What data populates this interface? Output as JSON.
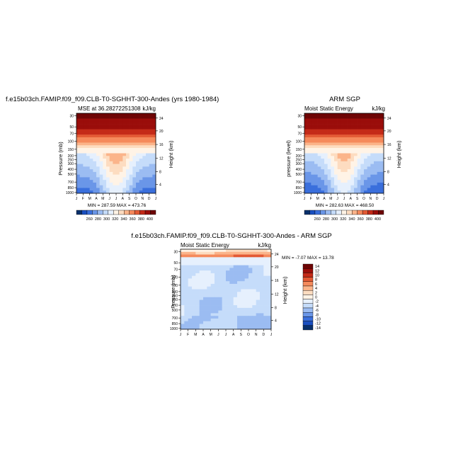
{
  "chart_data": [
    {
      "type": "heatmap",
      "title": "f.e15b03ch.FAMIP.f09_f09.CLB-T0-SGHHT-300-Andes (yrs 1980-1984)",
      "subtitle_left": "MSE at 36.28272251308",
      "subtitle_right": "kJ/kg",
      "ylabel": "Pressure (mb)",
      "ylabel_right": "Height (km)",
      "x_ticks": [
        "J",
        "F",
        "M",
        "A",
        "M",
        "J",
        "J",
        "A",
        "S",
        "O",
        "N",
        "D",
        "J"
      ],
      "y_ticks": [
        "30",
        "50",
        "70",
        "100",
        "150",
        "200",
        "250",
        "300",
        "400",
        "500",
        "700",
        "850",
        "1000"
      ],
      "y_ticks_right": [
        "24",
        "20",
        "16",
        "12",
        "8",
        "4"
      ],
      "stats": "MIN = 287.59 MAX = 473.76",
      "colorbar_labels": [
        "260",
        "280",
        "300",
        "320",
        "340",
        "360",
        "380",
        "400"
      ]
    },
    {
      "type": "heatmap",
      "title": "ARM SGP",
      "subtitle_left": "Moist Static Energy",
      "subtitle_right": "kJ/kg",
      "ylabel": "pressure (level)",
      "ylabel_right": "Height (km)",
      "x_ticks": [
        "J",
        "F",
        "M",
        "A",
        "M",
        "J",
        "J",
        "A",
        "S",
        "O",
        "N",
        "D",
        "J"
      ],
      "y_ticks": [
        "30",
        "50",
        "70",
        "100",
        "150",
        "200",
        "250",
        "300",
        "400",
        "500",
        "700",
        "850",
        "1000"
      ],
      "y_ticks_right": [
        "24",
        "20",
        "16",
        "12",
        "8",
        "4"
      ],
      "stats": "MIN = 282.63 MAX = 468.50",
      "colorbar_labels": [
        "260",
        "280",
        "300",
        "320",
        "340",
        "360",
        "380",
        "400"
      ]
    },
    {
      "type": "heatmap",
      "title": "f.e15b03ch.FAMIP.f09_f09.CLB-T0-SGHHT-300-Andes - ARM SGP",
      "subtitle_left": "Moist Static Energy",
      "subtitle_right": "kJ/kg",
      "ylabel": "Pressure (mb)",
      "ylabel_right": "Height (km)",
      "x_ticks": [
        "J",
        "F",
        "M",
        "A",
        "M",
        "J",
        "J",
        "A",
        "S",
        "O",
        "N",
        "D",
        "J"
      ],
      "y_ticks": [
        "30",
        "50",
        "70",
        "100",
        "150",
        "200",
        "250",
        "300",
        "400",
        "500",
        "700",
        "850",
        "1000"
      ],
      "y_ticks_right": [
        "24",
        "20",
        "16",
        "12",
        "8",
        "4"
      ],
      "stats": "MIN =  -7.07 MAX =  13.78",
      "colorbar_labels": [
        "14",
        "12",
        "10",
        "8",
        "6",
        "4",
        "2",
        "0",
        "-2",
        "-4",
        "-6",
        "-8",
        "-10",
        "-12",
        "-14"
      ]
    }
  ],
  "colors": {
    "abs_scale": [
      "#08306b",
      "#1a4fc0",
      "#3a6fdc",
      "#6a96e8",
      "#9bbcf2",
      "#c5dcfa",
      "#e6f0fd",
      "#fff3e6",
      "#fddcc0",
      "#fbb48a",
      "#f58a5c",
      "#e35a35",
      "#c42a18",
      "#9a0d0a",
      "#6e0505"
    ],
    "diff_scale": [
      "#6e0505",
      "#9a0d0a",
      "#c42a18",
      "#e35a35",
      "#f58a5c",
      "#fbb48a",
      "#fddcc0",
      "#fff3e6",
      "#e6f0fd",
      "#c5dcfa",
      "#9bbcf2",
      "#6a96e8",
      "#3a6fdc",
      "#1a4fc0",
      "#08306b"
    ]
  }
}
